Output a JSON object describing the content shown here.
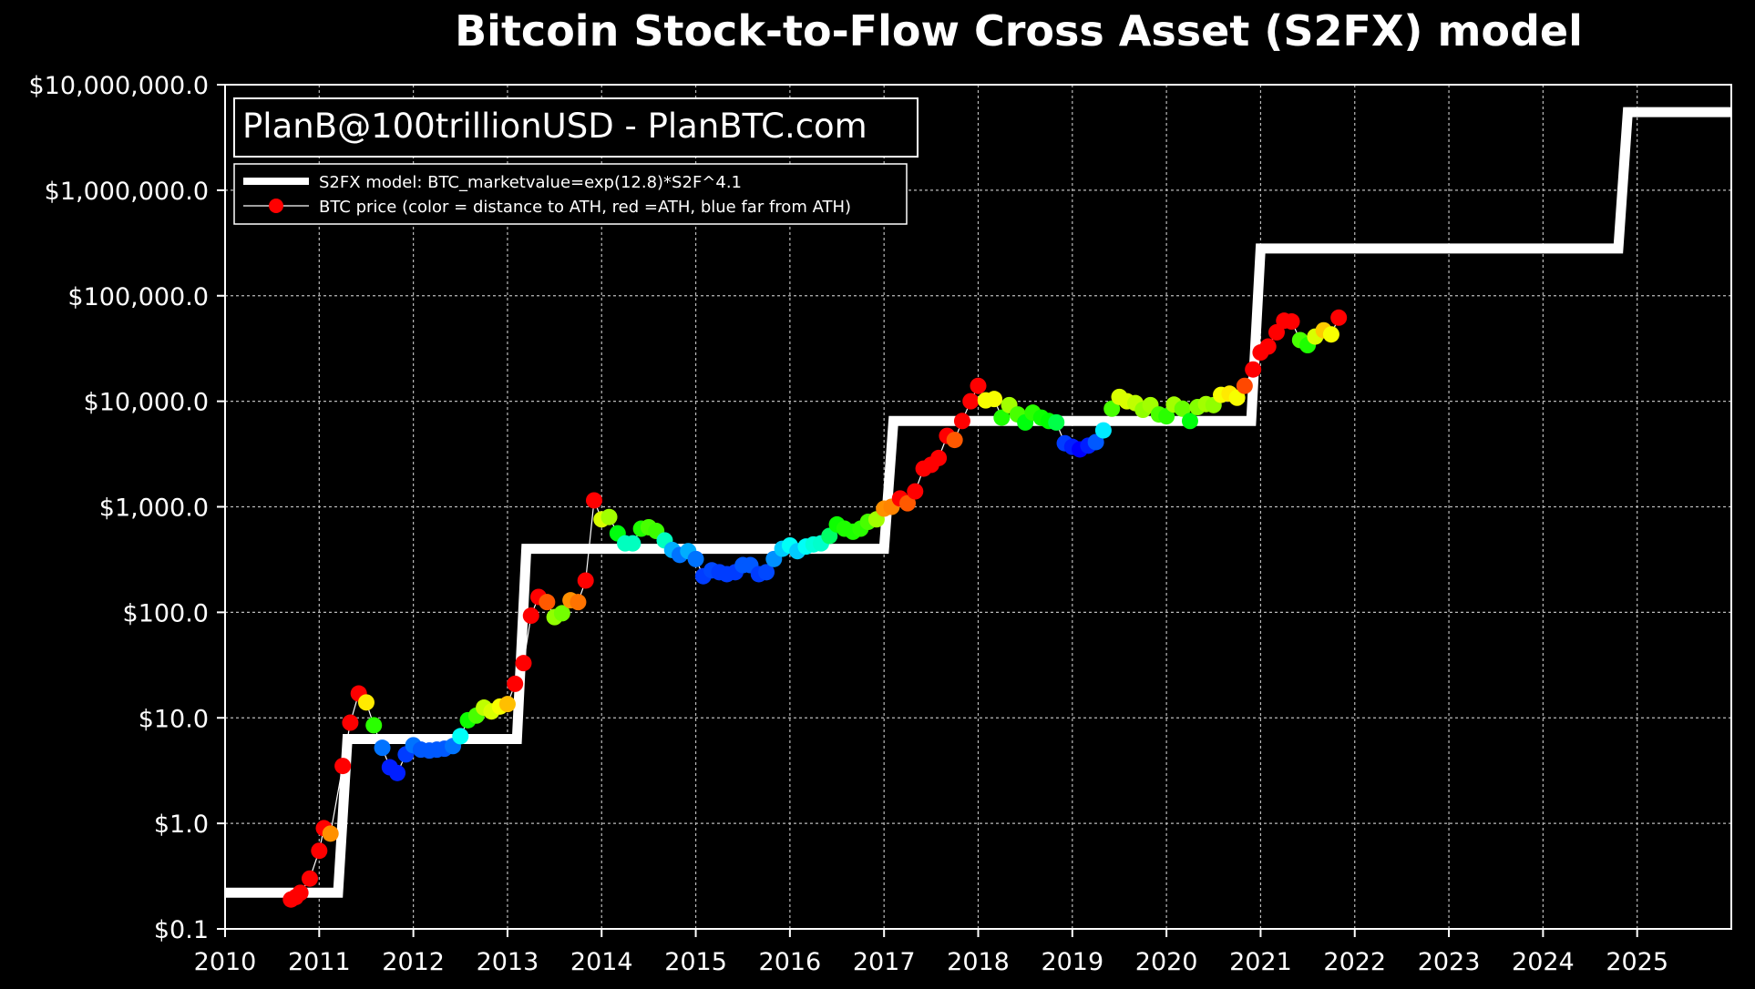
{
  "chart_data": {
    "type": "scatter",
    "title": "Bitcoin Stock-to-Flow Cross Asset (S2FX) model",
    "watermark": "PlanB@100trillionUSD  -  PlanBTC.com",
    "yscale": "log",
    "ylim": [
      0.1,
      10000000
    ],
    "xlim": [
      2010,
      2026
    ],
    "x_ticks": [
      2010,
      2011,
      2012,
      2013,
      2014,
      2015,
      2016,
      2017,
      2018,
      2019,
      2020,
      2021,
      2022,
      2023,
      2024,
      2025
    ],
    "x_tick_labels": [
      "2010",
      "2011",
      "2012",
      "2013",
      "2014",
      "2015",
      "2016",
      "2017",
      "2018",
      "2019",
      "2020",
      "2021",
      "2022",
      "2023",
      "2024",
      "2025"
    ],
    "y_ticks": [
      0.1,
      1,
      10,
      100,
      1000,
      10000,
      100000,
      1000000,
      10000000
    ],
    "y_tick_labels": [
      "$0.1",
      "$1.0",
      "$10.0",
      "$100.0",
      "$1,000.0",
      "$10,000.0",
      "$100,000.0",
      "$1,000,000.0",
      "$10,000,000.0"
    ],
    "grid": true,
    "legend": {
      "position": "top-left",
      "entries": [
        "S2FX model: BTC_marketvalue=exp(12.8)*S2F^4.1",
        "BTC price (color = distance to ATH, red =ATH, blue far from ATH)"
      ]
    },
    "colors": {
      "background": "#000000",
      "model_line": "#ffffff",
      "grid": "#bbbbbb",
      "text": "#ffffff"
    },
    "series": [
      {
        "name": "S2FX model",
        "type": "step",
        "points": [
          [
            2010.0,
            0.22
          ],
          [
            2011.2,
            0.22
          ],
          [
            2011.3,
            6.3
          ],
          [
            2013.1,
            6.3
          ],
          [
            2013.2,
            400
          ],
          [
            2017.0,
            400
          ],
          [
            2017.1,
            6500
          ],
          [
            2020.9,
            6500
          ],
          [
            2021.0,
            280000
          ],
          [
            2024.8,
            280000
          ],
          [
            2024.9,
            5500000
          ],
          [
            2026.0,
            5500000
          ]
        ]
      },
      {
        "name": "BTC price",
        "type": "scatter",
        "points": [
          [
            2010.7,
            0.19,
            0
          ],
          [
            2010.75,
            0.2,
            0
          ],
          [
            2010.8,
            0.22,
            0
          ],
          [
            2010.9,
            0.3,
            0
          ],
          [
            2011.0,
            0.55,
            0
          ],
          [
            2011.05,
            0.9,
            0
          ],
          [
            2011.12,
            0.8,
            0.1
          ],
          [
            2011.25,
            3.5,
            0
          ],
          [
            2011.33,
            9,
            0
          ],
          [
            2011.42,
            17,
            0
          ],
          [
            2011.5,
            14,
            0.16
          ],
          [
            2011.58,
            8.5,
            0.32
          ],
          [
            2011.67,
            5.2,
            0.62
          ],
          [
            2011.75,
            3.4,
            0.68
          ],
          [
            2011.83,
            3.0,
            0.68
          ],
          [
            2011.92,
            4.5,
            0.66
          ],
          [
            2012.0,
            5.5,
            0.62
          ],
          [
            2012.08,
            5.0,
            0.64
          ],
          [
            2012.17,
            4.9,
            0.64
          ],
          [
            2012.25,
            5.0,
            0.64
          ],
          [
            2012.33,
            5.1,
            0.64
          ],
          [
            2012.42,
            5.4,
            0.62
          ],
          [
            2012.5,
            6.7,
            0.52
          ],
          [
            2012.58,
            9.5,
            0.34
          ],
          [
            2012.67,
            10.5,
            0.3
          ],
          [
            2012.75,
            12.5,
            0.22
          ],
          [
            2012.83,
            11.5,
            0.2
          ],
          [
            2012.92,
            12.8,
            0.18
          ],
          [
            2013.0,
            13.5,
            0.13
          ],
          [
            2013.08,
            21,
            0
          ],
          [
            2013.17,
            33,
            0
          ],
          [
            2013.25,
            93,
            0
          ],
          [
            2013.33,
            140,
            0
          ],
          [
            2013.42,
            125,
            0.06
          ],
          [
            2013.5,
            90,
            0.25
          ],
          [
            2013.58,
            98,
            0.27
          ],
          [
            2013.67,
            130,
            0.1
          ],
          [
            2013.75,
            125,
            0.08
          ],
          [
            2013.83,
            200,
            0
          ],
          [
            2013.92,
            1150,
            0
          ],
          [
            2014.0,
            760,
            0.2
          ],
          [
            2014.08,
            800,
            0.24
          ],
          [
            2014.17,
            560,
            0.36
          ],
          [
            2014.25,
            450,
            0.48
          ],
          [
            2014.33,
            450,
            0.48
          ],
          [
            2014.42,
            620,
            0.33
          ],
          [
            2014.5,
            640,
            0.3
          ],
          [
            2014.58,
            590,
            0.31
          ],
          [
            2014.67,
            480,
            0.48
          ],
          [
            2014.75,
            390,
            0.58
          ],
          [
            2014.83,
            350,
            0.62
          ],
          [
            2014.92,
            380,
            0.58
          ],
          [
            2015.0,
            320,
            0.62
          ],
          [
            2015.08,
            220,
            0.66
          ],
          [
            2015.17,
            250,
            0.65
          ],
          [
            2015.25,
            240,
            0.66
          ],
          [
            2015.33,
            230,
            0.66
          ],
          [
            2015.42,
            240,
            0.66
          ],
          [
            2015.5,
            280,
            0.64
          ],
          [
            2015.58,
            280,
            0.64
          ],
          [
            2015.67,
            230,
            0.66
          ],
          [
            2015.75,
            240,
            0.65
          ],
          [
            2015.83,
            320,
            0.6
          ],
          [
            2015.92,
            400,
            0.56
          ],
          [
            2016.0,
            430,
            0.52
          ],
          [
            2016.08,
            380,
            0.56
          ],
          [
            2016.17,
            420,
            0.52
          ],
          [
            2016.25,
            440,
            0.5
          ],
          [
            2016.33,
            450,
            0.49
          ],
          [
            2016.42,
            530,
            0.42
          ],
          [
            2016.5,
            680,
            0.34
          ],
          [
            2016.58,
            620,
            0.33
          ],
          [
            2016.67,
            580,
            0.33
          ],
          [
            2016.75,
            620,
            0.32
          ],
          [
            2016.83,
            720,
            0.3
          ],
          [
            2016.92,
            760,
            0.24
          ],
          [
            2017.0,
            960,
            0.1
          ],
          [
            2017.08,
            1000,
            0.09
          ],
          [
            2017.17,
            1200,
            0
          ],
          [
            2017.25,
            1080,
            0.06
          ],
          [
            2017.33,
            1400,
            0
          ],
          [
            2017.42,
            2300,
            0
          ],
          [
            2017.5,
            2500,
            0
          ],
          [
            2017.58,
            2900,
            0
          ],
          [
            2017.67,
            4700,
            0
          ],
          [
            2017.75,
            4300,
            0.06
          ],
          [
            2017.83,
            6500,
            0
          ],
          [
            2017.92,
            10000,
            0
          ],
          [
            2018.0,
            14000,
            0
          ],
          [
            2018.08,
            10200,
            0.18
          ],
          [
            2018.17,
            10500,
            0.18
          ],
          [
            2018.25,
            7000,
            0.33
          ],
          [
            2018.33,
            9200,
            0.24
          ],
          [
            2018.42,
            7500,
            0.3
          ],
          [
            2018.5,
            6300,
            0.36
          ],
          [
            2018.58,
            7800,
            0.32
          ],
          [
            2018.67,
            7000,
            0.34
          ],
          [
            2018.75,
            6500,
            0.35
          ],
          [
            2018.83,
            6300,
            0.4
          ],
          [
            2018.92,
            4000,
            0.66
          ],
          [
            2019.0,
            3700,
            0.68
          ],
          [
            2019.08,
            3500,
            0.7
          ],
          [
            2019.17,
            3800,
            0.68
          ],
          [
            2019.25,
            4100,
            0.64
          ],
          [
            2019.33,
            5300,
            0.54
          ],
          [
            2019.42,
            8500,
            0.3
          ],
          [
            2019.5,
            11000,
            0.2
          ],
          [
            2019.58,
            10000,
            0.2
          ],
          [
            2019.67,
            9600,
            0.22
          ],
          [
            2019.75,
            8300,
            0.25
          ],
          [
            2019.83,
            9200,
            0.24
          ],
          [
            2019.92,
            7500,
            0.3
          ],
          [
            2020.0,
            7200,
            0.32
          ],
          [
            2020.08,
            9300,
            0.24
          ],
          [
            2020.17,
            8500,
            0.28
          ],
          [
            2020.25,
            6500,
            0.36
          ],
          [
            2020.33,
            8800,
            0.26
          ],
          [
            2020.42,
            9400,
            0.24
          ],
          [
            2020.5,
            9200,
            0.25
          ],
          [
            2020.58,
            11500,
            0.18
          ],
          [
            2020.67,
            11800,
            0.16
          ],
          [
            2020.75,
            10800,
            0.18
          ],
          [
            2020.83,
            14000,
            0.05
          ],
          [
            2020.92,
            20000,
            0
          ],
          [
            2021.0,
            29000,
            0
          ],
          [
            2021.08,
            33000,
            0
          ],
          [
            2021.17,
            45000,
            0
          ],
          [
            2021.25,
            58000,
            0
          ],
          [
            2021.33,
            57000,
            0
          ],
          [
            2021.42,
            38000,
            0.3
          ],
          [
            2021.5,
            34000,
            0.33
          ],
          [
            2021.58,
            41000,
            0.2
          ],
          [
            2021.67,
            47000,
            0.14
          ],
          [
            2021.75,
            43000,
            0.18
          ],
          [
            2021.83,
            62000,
            0
          ]
        ]
      }
    ]
  }
}
